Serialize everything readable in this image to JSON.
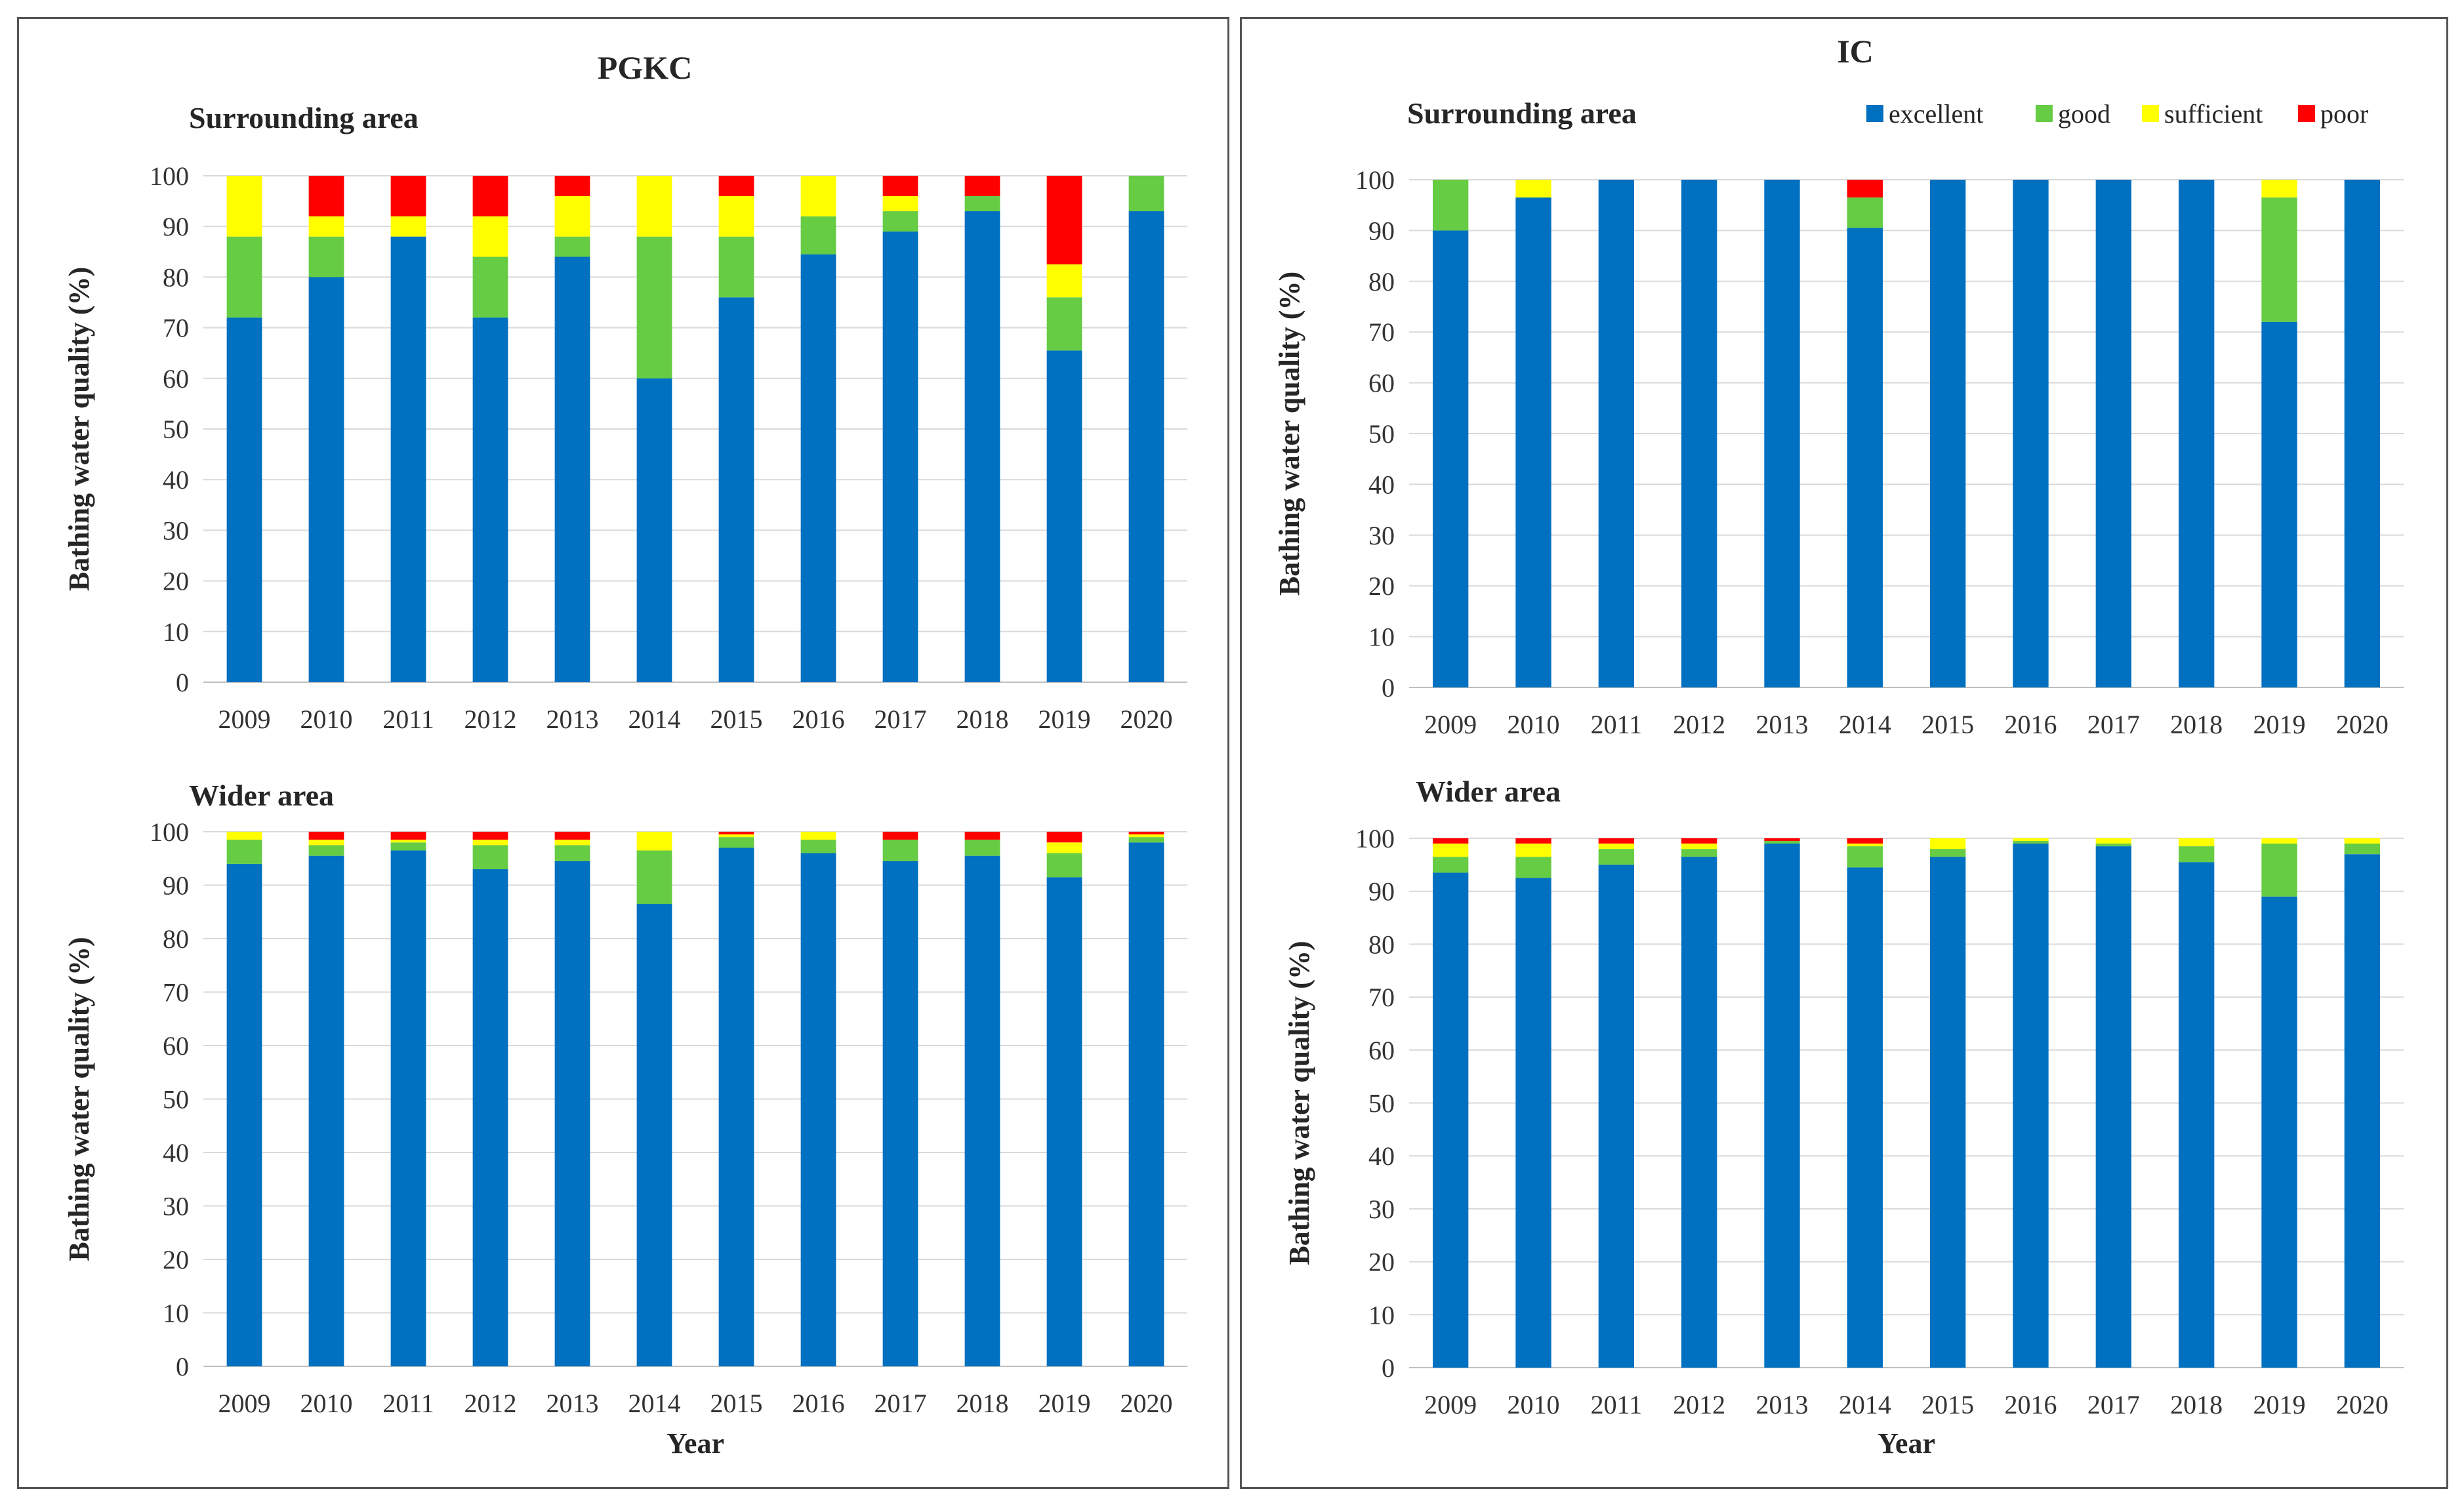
{
  "legend": {
    "entries": [
      {
        "label": "excellent",
        "color": "#0070C0"
      },
      {
        "label": "good",
        "color": "#66CC44"
      },
      {
        "label": "sufficient",
        "color": "#FFFF00"
      },
      {
        "label": "poor",
        "color": "#FF0000"
      }
    ]
  },
  "panels": [
    {
      "id": "pgkc",
      "title": "PGKC"
    },
    {
      "id": "ic",
      "title": "IC"
    }
  ],
  "chart_data": [
    {
      "type": "bar",
      "panel": "pgkc",
      "title": "Surrounding area",
      "xlabel": "",
      "ylabel": "Bathing water quality (%)",
      "ylim": [
        0,
        100
      ],
      "categories": [
        "2009",
        "2010",
        "2011",
        "2012",
        "2013",
        "2014",
        "2015",
        "2016",
        "2017",
        "2018",
        "2019",
        "2020"
      ],
      "series": [
        {
          "name": "excellent",
          "values": [
            72,
            80,
            88,
            72,
            84,
            60,
            76,
            84.5,
            89,
            93,
            65.5,
            93
          ]
        },
        {
          "name": "good",
          "values": [
            16,
            8,
            0,
            12,
            4,
            28,
            12,
            7.5,
            4,
            3,
            10.5,
            7
          ]
        },
        {
          "name": "sufficient",
          "values": [
            12,
            4,
            4,
            8,
            8,
            12,
            8,
            8,
            3,
            0,
            6.5,
            0
          ]
        },
        {
          "name": "poor",
          "values": [
            0,
            8,
            8,
            8,
            4,
            0,
            4,
            0,
            4,
            4,
            17.5,
            0
          ]
        }
      ]
    },
    {
      "type": "bar",
      "panel": "pgkc",
      "title": "Wider area",
      "xlabel": "Year",
      "ylabel": "Bathing water quality (%)",
      "ylim": [
        0,
        100
      ],
      "categories": [
        "2009",
        "2010",
        "2011",
        "2012",
        "2013",
        "2014",
        "2015",
        "2016",
        "2017",
        "2018",
        "2019",
        "2020"
      ],
      "series": [
        {
          "name": "excellent",
          "values": [
            94,
            95.5,
            96.5,
            93,
            94.5,
            86.5,
            97,
            96,
            94.5,
            95.5,
            91.5,
            98
          ]
        },
        {
          "name": "good",
          "values": [
            4.5,
            2,
            1.5,
            4.5,
            3,
            10,
            2,
            2.5,
            4,
            3,
            4.5,
            1
          ]
        },
        {
          "name": "sufficient",
          "values": [
            1.5,
            1,
            0.5,
            1,
            1,
            3.5,
            0.5,
            1.5,
            0,
            0,
            2,
            0.5
          ]
        },
        {
          "name": "poor",
          "values": [
            0,
            1.5,
            1.5,
            1.5,
            1.5,
            0,
            0.5,
            0,
            1.5,
            1.5,
            2,
            0.5
          ]
        }
      ]
    },
    {
      "type": "bar",
      "panel": "ic",
      "title": "Surrounding area",
      "xlabel": "",
      "ylabel": "Bathing water quality  (%)",
      "ylim": [
        0,
        100
      ],
      "categories": [
        "2009",
        "2010",
        "2011",
        "2012",
        "2013",
        "2014",
        "2015",
        "2016",
        "2017",
        "2018",
        "2019",
        "2020"
      ],
      "series": [
        {
          "name": "excellent",
          "values": [
            90,
            96.5,
            100,
            100,
            100,
            90.5,
            100,
            100,
            100,
            100,
            72,
            100
          ]
        },
        {
          "name": "good",
          "values": [
            10,
            0,
            0,
            0,
            0,
            6,
            0,
            0,
            0,
            0,
            24.5,
            0
          ]
        },
        {
          "name": "sufficient",
          "values": [
            0,
            3.5,
            0,
            0,
            0,
            0,
            0,
            0,
            0,
            0,
            3.5,
            0
          ]
        },
        {
          "name": "poor",
          "values": [
            0,
            0,
            0,
            0,
            0,
            3.5,
            0,
            0,
            0,
            0,
            0,
            0
          ]
        }
      ]
    },
    {
      "type": "bar",
      "panel": "ic",
      "title": "Wider area",
      "xlabel": "Year",
      "ylabel": "Bathing water quality  (%)",
      "ylim": [
        0,
        100
      ],
      "categories": [
        "2009",
        "2010",
        "2011",
        "2012",
        "2013",
        "2014",
        "2015",
        "2016",
        "2017",
        "2018",
        "2019",
        "2020"
      ],
      "series": [
        {
          "name": "excellent",
          "values": [
            93.5,
            92.5,
            95,
            96.5,
            99,
            94.5,
            96.5,
            99,
            98.5,
            95.5,
            89,
            97
          ]
        },
        {
          "name": "good",
          "values": [
            3,
            4,
            3,
            1.5,
            0.5,
            4,
            1.5,
            0.5,
            0.5,
            3,
            10,
            2
          ]
        },
        {
          "name": "sufficient",
          "values": [
            2.5,
            2.5,
            1,
            1,
            0,
            0.5,
            2,
            0.5,
            1,
            1.5,
            1,
            1
          ]
        },
        {
          "name": "poor",
          "values": [
            1,
            1,
            1,
            1,
            0.5,
            1,
            0,
            0,
            0,
            0,
            0,
            0
          ]
        }
      ]
    }
  ]
}
